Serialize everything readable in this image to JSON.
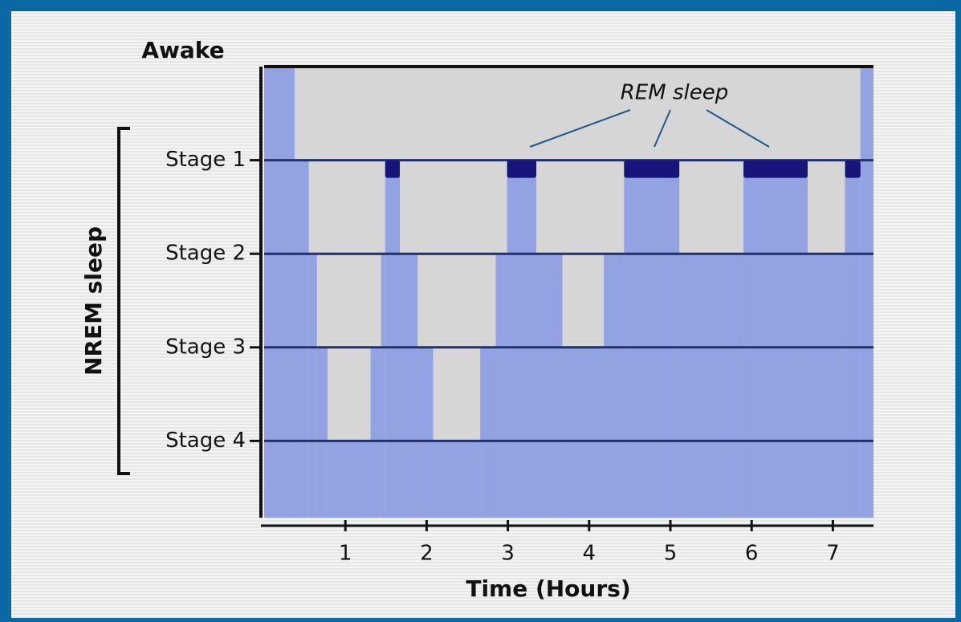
{
  "chart_data": {
    "type": "hypnogram",
    "top_label": "Awake",
    "group_label": "NREM sleep",
    "annotation": "REM sleep",
    "xlabel": "Time (Hours)",
    "xlim": [
      0,
      7.5
    ],
    "xticks": [
      1,
      2,
      3,
      4,
      5,
      6,
      7
    ],
    "ylim": [
      0,
      4.82
    ],
    "yticks": [
      {
        "value": 1,
        "label": "Stage 1"
      },
      {
        "value": 2,
        "label": "Stage 2"
      },
      {
        "value": 3,
        "label": "Stage 3"
      },
      {
        "value": 4,
        "label": "Stage 4"
      }
    ],
    "color": "#93a2e2",
    "rem_color": "#15157a",
    "segments": [
      {
        "start": 0,
        "end": 0.375,
        "stage": 0
      },
      {
        "start": 0.375,
        "end": 0.55,
        "stage": 1
      },
      {
        "start": 0.55,
        "end": 0.65,
        "stage": 2
      },
      {
        "start": 0.65,
        "end": 0.78,
        "stage": 3
      },
      {
        "start": 0.78,
        "end": 1.31,
        "stage": 4
      },
      {
        "start": 1.31,
        "end": 1.44,
        "stage": 3
      },
      {
        "start": 1.44,
        "end": 1.49,
        "stage": 2
      },
      {
        "start": 1.49,
        "end": 1.67,
        "stage": 1,
        "rem": true
      },
      {
        "start": 1.67,
        "end": 1.89,
        "stage": 2
      },
      {
        "start": 1.89,
        "end": 2.08,
        "stage": 3
      },
      {
        "start": 2.08,
        "end": 2.66,
        "stage": 4
      },
      {
        "start": 2.66,
        "end": 2.85,
        "stage": 3
      },
      {
        "start": 2.85,
        "end": 2.99,
        "stage": 2
      },
      {
        "start": 2.99,
        "end": 3.35,
        "stage": 1,
        "rem": true
      },
      {
        "start": 3.35,
        "end": 3.67,
        "stage": 2
      },
      {
        "start": 3.67,
        "end": 4.18,
        "stage": 3
      },
      {
        "start": 4.18,
        "end": 4.43,
        "stage": 2
      },
      {
        "start": 4.43,
        "end": 5.11,
        "stage": 1,
        "rem": true
      },
      {
        "start": 5.11,
        "end": 5.9,
        "stage": 2
      },
      {
        "start": 5.9,
        "end": 6.69,
        "stage": 1,
        "rem": true
      },
      {
        "start": 6.69,
        "end": 7.15,
        "stage": 2
      },
      {
        "start": 7.15,
        "end": 7.34,
        "stage": 1,
        "rem": true
      },
      {
        "start": 7.34,
        "end": 7.5,
        "stage": 0
      }
    ]
  }
}
